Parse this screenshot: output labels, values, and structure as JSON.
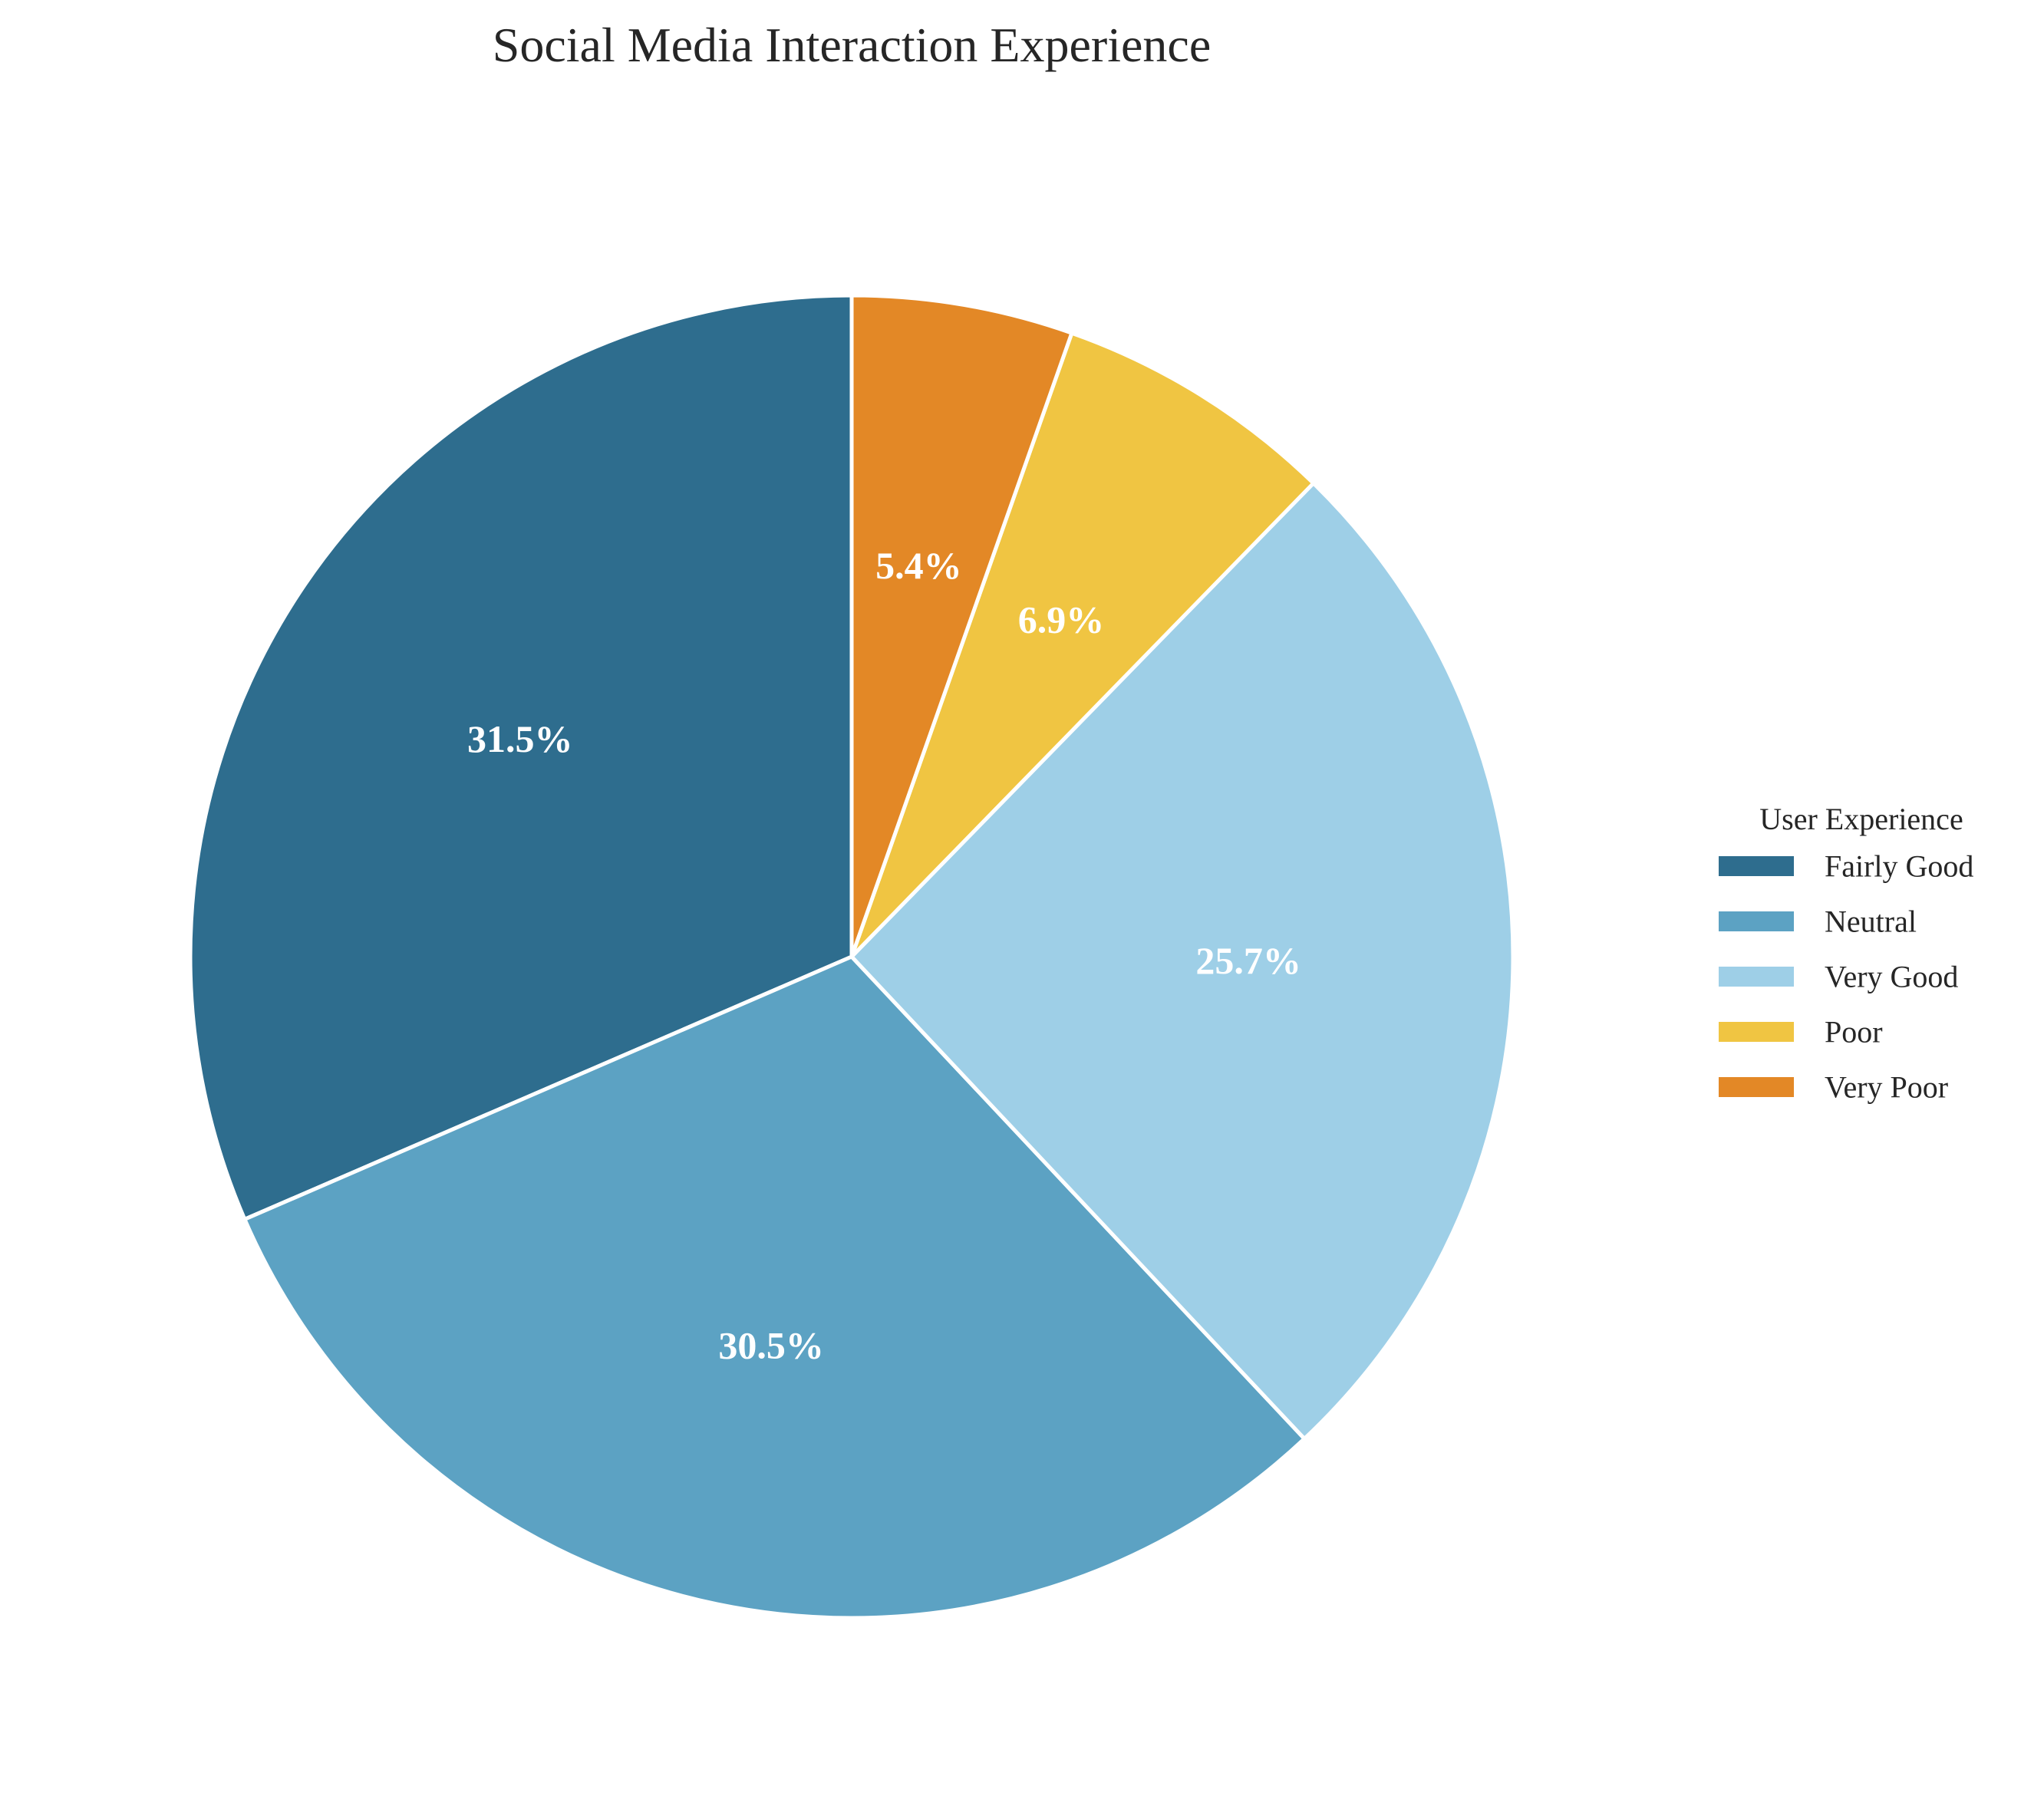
{
  "chart_data": {
    "type": "pie",
    "title": "Social Media Interaction Experience",
    "legend_title": "User Experience",
    "legend_position": "right",
    "start_angle_deg": 90,
    "direction": "counterclockwise",
    "slices": [
      {
        "label": "Fairly Good",
        "value": 31.5,
        "value_label": "31.5%",
        "color": "#2e6d8e"
      },
      {
        "label": "Neutral",
        "value": 30.5,
        "value_label": "30.5%",
        "color": "#5ca2c3"
      },
      {
        "label": "Very Good",
        "value": 25.7,
        "value_label": "25.7%",
        "color": "#9ecfe7"
      },
      {
        "label": "Poor",
        "value": 6.9,
        "value_label": "6.9%",
        "color": "#f0c542"
      },
      {
        "label": "Very Poor",
        "value": 5.4,
        "value_label": "5.4%",
        "color": "#e38826"
      }
    ]
  }
}
